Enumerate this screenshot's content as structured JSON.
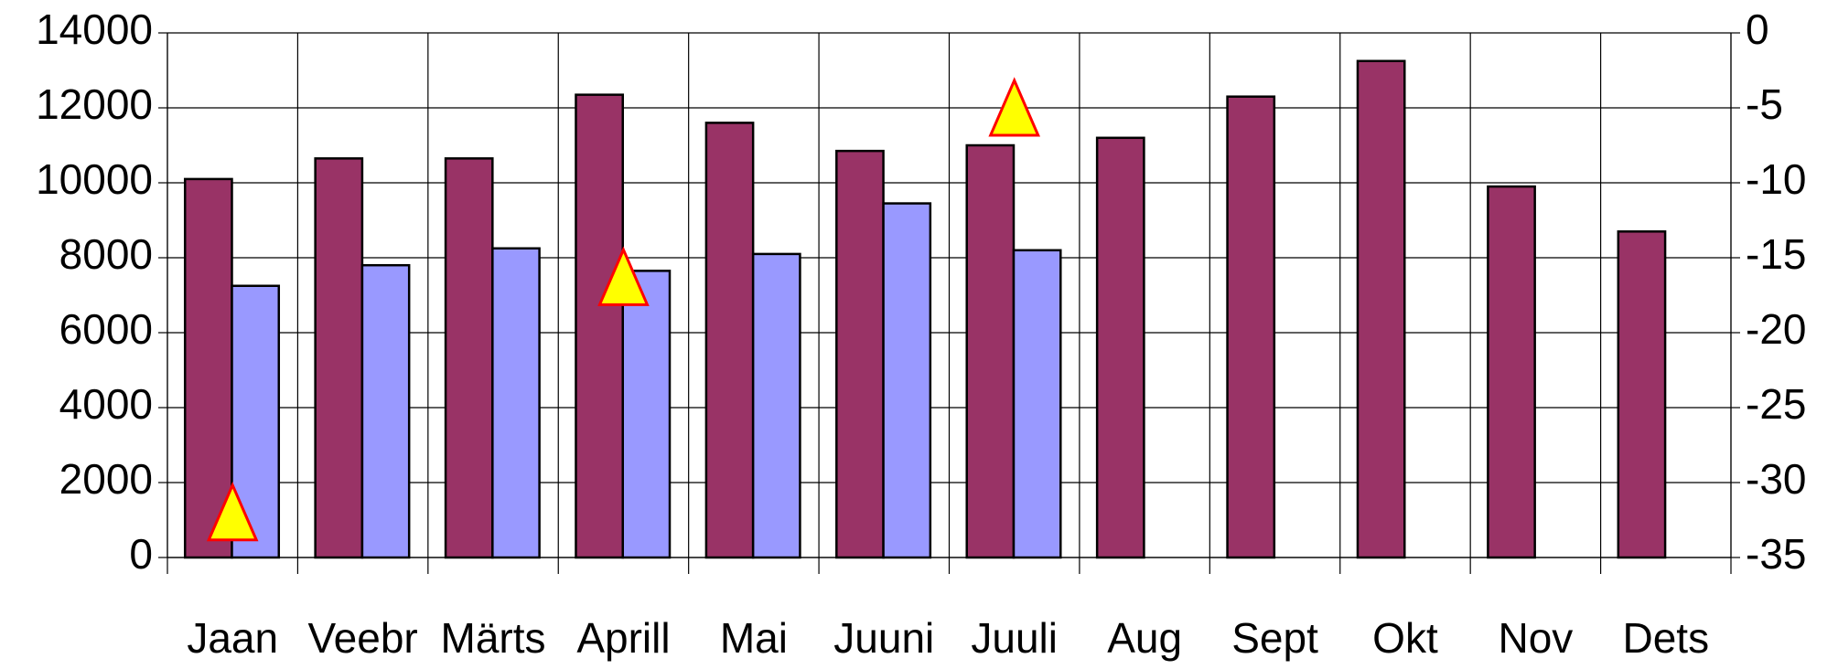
{
  "chart_data": {
    "type": "bar",
    "categories": [
      "Jaan",
      "Veebr",
      "Märts",
      "Aprill",
      "Mai",
      "Juuni",
      "Juuli",
      "Aug",
      "Sept",
      "Okt",
      "Nov",
      "Dets"
    ],
    "series": [
      {
        "color": "#993366",
        "values": [
          10100,
          10650,
          10650,
          12350,
          11600,
          10850,
          11000,
          11200,
          12300,
          13250,
          9900,
          8700
        ]
      },
      {
        "color": "#9999ff",
        "values": [
          7250,
          7800,
          8250,
          7650,
          8100,
          9450,
          8200,
          null,
          null,
          null,
          null,
          null
        ]
      },
      {
        "color": "#ffff00",
        "edge_color": "#ff0000",
        "axis": "y2",
        "marker": "triangle",
        "values": [
          -32,
          null,
          null,
          -16.3,
          null,
          null,
          -5,
          null,
          null,
          null,
          null,
          null
        ]
      }
    ],
    "ylim": [
      0,
      14000
    ],
    "yticks": [
      0,
      2000,
      4000,
      6000,
      8000,
      10000,
      12000,
      14000
    ],
    "y2lim": [
      -35,
      0
    ],
    "y2ticks": [
      -35,
      -30,
      -25,
      -20,
      -15,
      -10,
      -5,
      0
    ],
    "grid": true
  }
}
